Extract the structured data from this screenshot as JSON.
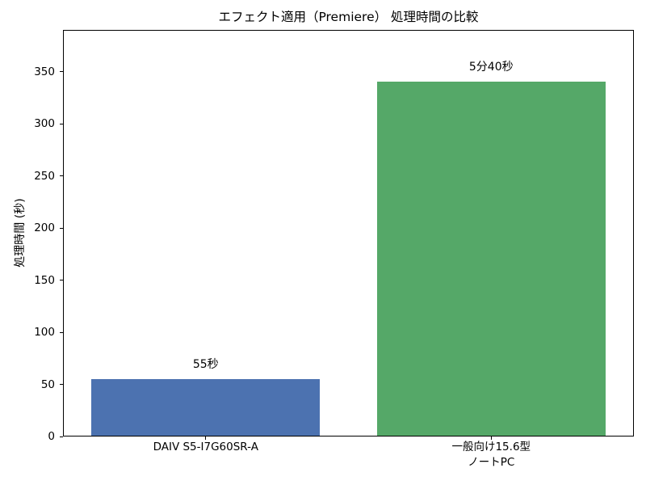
{
  "chart_data": {
    "type": "bar",
    "title": "エフェクト適用（Premiere） 処理時間の比較",
    "xlabel": "",
    "ylabel": "処理時間 (秒)",
    "categories": [
      "DAIV S5-I7G60SR-A",
      "一般向け15.6型\nノートPC"
    ],
    "values": [
      55,
      340
    ],
    "bar_labels": [
      "55秒",
      "5分40秒"
    ],
    "bar_colors": [
      "#4C72B0",
      "#55A868"
    ],
    "yticks": [
      0,
      50,
      100,
      150,
      200,
      250,
      300,
      350
    ],
    "ylim": [
      0,
      390
    ],
    "grid": false,
    "legend": null,
    "background_color": "#ffffff",
    "spine_color": "#000000"
  }
}
